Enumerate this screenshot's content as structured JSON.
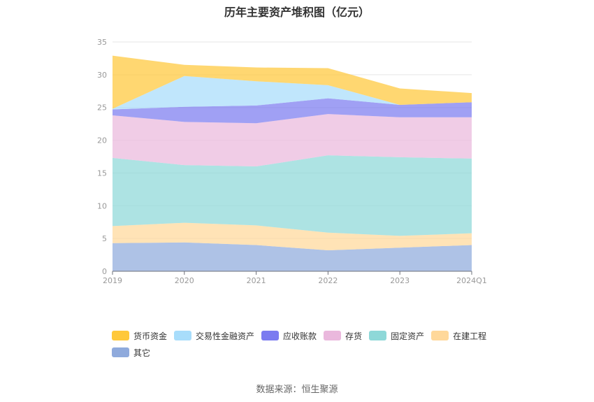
{
  "chart_data": {
    "type": "area",
    "title": "历年主要资产堆积图（亿元）",
    "categories": [
      "2019",
      "2020",
      "2021",
      "2022",
      "2023",
      "2024Q1"
    ],
    "ylim": [
      0,
      35
    ],
    "yticks": [
      0,
      5,
      10,
      15,
      20,
      25,
      30,
      35
    ],
    "stacked": true,
    "grid": true,
    "legend_position": "bottom",
    "series": [
      {
        "name": "其它",
        "color": "#8faadc",
        "values": [
          4.3,
          4.4,
          4.0,
          3.2,
          3.6,
          4.0
        ]
      },
      {
        "name": "在建工程",
        "color": "#ffd89a",
        "values": [
          2.6,
          3.0,
          3.0,
          2.7,
          1.8,
          1.8
        ]
      },
      {
        "name": "固定资产",
        "color": "#8ed8d8",
        "values": [
          10.4,
          8.8,
          9.0,
          11.8,
          12.0,
          11.4
        ]
      },
      {
        "name": "存货",
        "color": "#eab8dd",
        "values": [
          6.5,
          6.6,
          6.6,
          6.3,
          6.1,
          6.3
        ]
      },
      {
        "name": "应收账款",
        "color": "#7b7bf0",
        "values": [
          0.9,
          2.3,
          2.7,
          2.4,
          1.9,
          2.3
        ]
      },
      {
        "name": "交易性金融资产",
        "color": "#a8ddfb",
        "values": [
          0.1,
          4.7,
          3.7,
          2.0,
          0.0,
          0.0
        ]
      },
      {
        "name": "货币资金",
        "color": "#ffc83a",
        "values": [
          8.1,
          1.7,
          2.1,
          2.6,
          2.5,
          1.4
        ]
      }
    ]
  },
  "source": "数据来源：恒生聚源"
}
